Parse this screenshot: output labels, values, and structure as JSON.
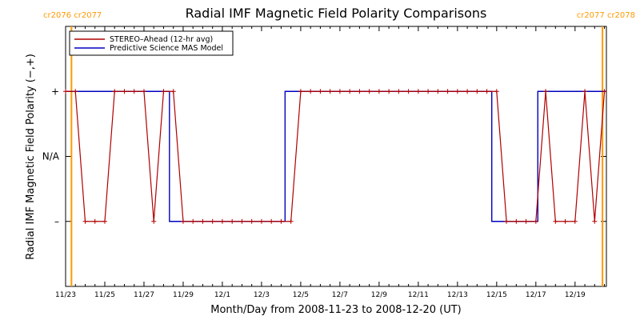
{
  "chart_data": {
    "type": "line",
    "title": "Radial IMF Magnetic Field Polarity Comparisons",
    "xlabel": "Month/Day from 2008-11-23 to 2008-12-20 (UT)",
    "ylabel": "Radial IMF Magnetic Field Polarity (−,+)",
    "x_unit": "days",
    "xlim": [
      0,
      27.6
    ],
    "ylim": [
      -2,
      2
    ],
    "y_ticks": [
      {
        "value": 1,
        "label": "+"
      },
      {
        "value": 0,
        "label": "N/A"
      },
      {
        "value": -1,
        "label": "–"
      }
    ],
    "x_ticks": [
      {
        "value": 0,
        "label": "11/23"
      },
      {
        "value": 2,
        "label": "11/25"
      },
      {
        "value": 4,
        "label": "11/27"
      },
      {
        "value": 6,
        "label": "11/29"
      },
      {
        "value": 8,
        "label": "12/1"
      },
      {
        "value": 10,
        "label": "12/3"
      },
      {
        "value": 12,
        "label": "12/5"
      },
      {
        "value": 14,
        "label": "12/7"
      },
      {
        "value": 16,
        "label": "12/9"
      },
      {
        "value": 18,
        "label": "12/11"
      },
      {
        "value": 20,
        "label": "12/13"
      },
      {
        "value": 22,
        "label": "12/15"
      },
      {
        "value": 24,
        "label": "12/17"
      },
      {
        "value": 26,
        "label": "12/19"
      }
    ],
    "carrington_markers": [
      {
        "x": 0.3,
        "labels": [
          "cr2076",
          "cr2077"
        ],
        "align": "left"
      },
      {
        "x": 27.4,
        "labels": [
          "cr2077",
          "cr2078"
        ],
        "align": "right"
      }
    ],
    "legend": {
      "position": "top-left"
    },
    "series": [
      {
        "name": "STEREO–Ahead (12-hr avg)",
        "color": "#b00000",
        "marker": "plus",
        "x": [
          0,
          0.5,
          1,
          1.5,
          2,
          2.5,
          3,
          3.5,
          4,
          4.5,
          5,
          5.5,
          6,
          6.5,
          7,
          7.5,
          8,
          8.5,
          9,
          9.5,
          10,
          10.5,
          11,
          11.5,
          12,
          12.5,
          13,
          13.5,
          14,
          14.5,
          15,
          15.5,
          16,
          16.5,
          17,
          17.5,
          18,
          18.5,
          19,
          19.5,
          20,
          20.5,
          21,
          21.5,
          22,
          22.5,
          23,
          23.5,
          24,
          24.5,
          25,
          25.5,
          26,
          26.5,
          27,
          27.5
        ],
        "values": [
          1,
          1,
          -1,
          -1,
          -1,
          1,
          1,
          1,
          1,
          -1,
          1,
          1,
          -1,
          -1,
          -1,
          -1,
          -1,
          -1,
          -1,
          -1,
          -1,
          -1,
          -1,
          -1,
          1,
          1,
          1,
          1,
          1,
          1,
          1,
          1,
          1,
          1,
          1,
          1,
          1,
          1,
          1,
          1,
          1,
          1,
          1,
          1,
          1,
          -1,
          -1,
          -1,
          -1,
          1,
          -1,
          -1,
          -1,
          1,
          -1,
          1
        ]
      },
      {
        "name": "Predictive Science MAS Model",
        "color": "#0000c0",
        "marker": "none",
        "step_x": [
          0,
          5.3,
          5.3,
          11.2,
          11.2,
          21.75,
          21.75,
          24.1,
          24.1,
          27.6
        ],
        "step_y": [
          1,
          1,
          -1,
          -1,
          1,
          1,
          -1,
          -1,
          1,
          1
        ]
      }
    ]
  }
}
